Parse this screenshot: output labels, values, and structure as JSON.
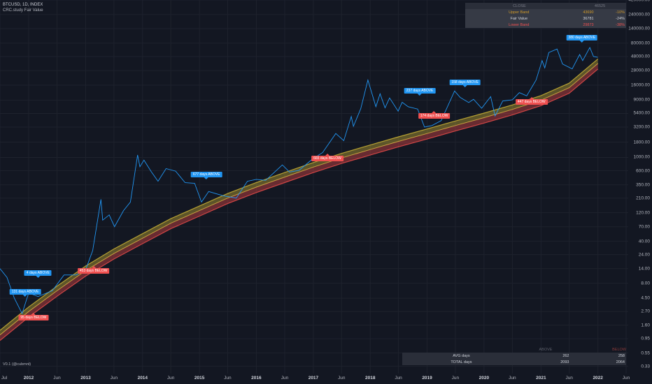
{
  "header": {
    "symbol_line": "BTCUSD, 1D, INDEX",
    "indicator_line": "CRC.study Fair Value"
  },
  "version_label": "V0.1 (@cubmnt)",
  "top_table": {
    "header": [
      "CLOSE",
      "46525"
    ],
    "rows": [
      {
        "label": "Upper Band",
        "value": "43690",
        "pct": "-10%",
        "color": "#d19a2a"
      },
      {
        "label": "Fair Value",
        "value": "36781",
        "pct": "-24%",
        "color": "#d1d4dc"
      },
      {
        "label": "Lower Band",
        "value": "29873",
        "pct": "-38%",
        "color": "#f05050"
      }
    ]
  },
  "bottom_table": {
    "header": [
      "",
      "ABOVE",
      "BELOW"
    ],
    "rows": [
      {
        "label": "AVG days",
        "above": "262",
        "below": "258"
      },
      {
        "label": "TOTAL days",
        "above": "2093",
        "below": "2064"
      }
    ]
  },
  "colors": {
    "background": "#131722",
    "price": "#2196f3",
    "band_upper": "#b5a032",
    "band_fair": "#c8a040",
    "band_lower": "#d04545",
    "above": "#2196f3",
    "below": "#f05050"
  },
  "chart_data": {
    "type": "line",
    "scale": "log",
    "ylim": [
      0.25,
      420000
    ],
    "xlim": [
      "2011-07-01",
      "2022-07-01"
    ],
    "grid": true,
    "y_ticks": [
      "420000.00",
      "240000.00",
      "140000.00",
      "80000.00",
      "48000.00",
      "28000.00",
      "16000.00",
      "9000.00",
      "5400.00",
      "3200.00",
      "1800.00",
      "1000.00",
      "600.00",
      "350.00",
      "210.00",
      "120.00",
      "70.00",
      "40.00",
      "24.00",
      "14.00",
      "8.00",
      "4.50",
      "2.70",
      "1.60",
      "0.95",
      "0.55",
      "0.33"
    ],
    "x_ticks": [
      {
        "date": "2011-07-01",
        "label": "Jul",
        "year": false
      },
      {
        "date": "2012-01-01",
        "label": "2012",
        "year": true
      },
      {
        "date": "2012-07-01",
        "label": "Jun",
        "year": false
      },
      {
        "date": "2013-01-01",
        "label": "2013",
        "year": true
      },
      {
        "date": "2013-07-01",
        "label": "Jun",
        "year": false
      },
      {
        "date": "2014-01-01",
        "label": "2014",
        "year": true
      },
      {
        "date": "2014-07-01",
        "label": "Jun",
        "year": false
      },
      {
        "date": "2015-01-01",
        "label": "2015",
        "year": true
      },
      {
        "date": "2015-07-01",
        "label": "Jun",
        "year": false
      },
      {
        "date": "2016-01-01",
        "label": "2016",
        "year": true
      },
      {
        "date": "2016-07-01",
        "label": "Jun",
        "year": false
      },
      {
        "date": "2017-01-01",
        "label": "2017",
        "year": true
      },
      {
        "date": "2017-07-01",
        "label": "Jun",
        "year": false
      },
      {
        "date": "2018-01-01",
        "label": "2018",
        "year": true
      },
      {
        "date": "2018-07-01",
        "label": "Jun",
        "year": false
      },
      {
        "date": "2019-01-01",
        "label": "2019",
        "year": true
      },
      {
        "date": "2019-07-01",
        "label": "Jun",
        "year": false
      },
      {
        "date": "2020-01-01",
        "label": "2020",
        "year": true
      },
      {
        "date": "2020-07-01",
        "label": "Jun",
        "year": false
      },
      {
        "date": "2021-01-01",
        "label": "2021",
        "year": true
      },
      {
        "date": "2021-07-01",
        "label": "Jun",
        "year": false
      },
      {
        "date": "2022-01-01",
        "label": "2022",
        "year": true
      },
      {
        "date": "2022-07-01",
        "label": "Jun",
        "year": false
      }
    ],
    "price_series": [
      [
        "2011-07-01",
        14
      ],
      [
        "2011-08-15",
        10
      ],
      [
        "2011-10-01",
        4.5
      ],
      [
        "2011-11-20",
        2.5
      ],
      [
        "2012-01-01",
        5.5
      ],
      [
        "2012-03-01",
        4.8
      ],
      [
        "2012-06-01",
        6
      ],
      [
        "2012-08-15",
        11
      ],
      [
        "2012-11-01",
        11
      ],
      [
        "2013-01-01",
        13.5
      ],
      [
        "2013-02-15",
        28
      ],
      [
        "2013-04-09",
        200
      ],
      [
        "2013-04-20",
        90
      ],
      [
        "2013-06-01",
        110
      ],
      [
        "2013-07-05",
        70
      ],
      [
        "2013-09-01",
        130
      ],
      [
        "2013-10-15",
        180
      ],
      [
        "2013-11-30",
        1100
      ],
      [
        "2013-12-15",
        700
      ],
      [
        "2014-01-10",
        900
      ],
      [
        "2014-02-25",
        580
      ],
      [
        "2014-04-10",
        400
      ],
      [
        "2014-06-01",
        650
      ],
      [
        "2014-08-01",
        590
      ],
      [
        "2014-10-01",
        380
      ],
      [
        "2014-12-01",
        370
      ],
      [
        "2015-01-14",
        180
      ],
      [
        "2015-03-01",
        270
      ],
      [
        "2015-06-01",
        230
      ],
      [
        "2015-08-25",
        210
      ],
      [
        "2015-11-05",
        400
      ],
      [
        "2016-01-01",
        430
      ],
      [
        "2016-03-01",
        415
      ],
      [
        "2016-06-16",
        750
      ],
      [
        "2016-08-01",
        570
      ],
      [
        "2016-10-01",
        610
      ],
      [
        "2016-12-31",
        960
      ],
      [
        "2017-03-01",
        1200
      ],
      [
        "2017-05-25",
        2500
      ],
      [
        "2017-07-15",
        1900
      ],
      [
        "2017-09-01",
        4800
      ],
      [
        "2017-09-15",
        3300
      ],
      [
        "2017-11-01",
        6500
      ],
      [
        "2017-12-17",
        19500
      ],
      [
        "2018-02-06",
        7000
      ],
      [
        "2018-03-05",
        11500
      ],
      [
        "2018-04-06",
        6700
      ],
      [
        "2018-05-05",
        9800
      ],
      [
        "2018-06-29",
        5900
      ],
      [
        "2018-07-25",
        8300
      ],
      [
        "2018-09-01",
        7000
      ],
      [
        "2018-11-01",
        6400
      ],
      [
        "2018-12-15",
        3200
      ],
      [
        "2019-02-01",
        3400
      ],
      [
        "2019-04-01",
        4100
      ],
      [
        "2019-06-26",
        12800
      ],
      [
        "2019-08-01",
        10000
      ],
      [
        "2019-09-25",
        8200
      ],
      [
        "2019-10-26",
        9300
      ],
      [
        "2019-12-17",
        6600
      ],
      [
        "2020-02-13",
        10300
      ],
      [
        "2020-03-12",
        4900
      ],
      [
        "2020-04-30",
        8700
      ],
      [
        "2020-07-01",
        9100
      ],
      [
        "2020-08-15",
        12000
      ],
      [
        "2020-10-01",
        10600
      ],
      [
        "2020-11-30",
        19500
      ],
      [
        "2021-01-08",
        41000
      ],
      [
        "2021-01-25",
        31000
      ],
      [
        "2021-02-20",
        56000
      ],
      [
        "2021-04-14",
        64000
      ],
      [
        "2021-05-19",
        36000
      ],
      [
        "2021-07-20",
        29800
      ],
      [
        "2021-09-06",
        52000
      ],
      [
        "2021-09-25",
        41000
      ],
      [
        "2021-11-10",
        68000
      ],
      [
        "2021-12-04",
        48000
      ],
      [
        "2021-12-31",
        46525
      ]
    ],
    "bands": {
      "note": "Fair value curve with upper and lower bands",
      "fair": [
        [
          "2011-07-01",
          1.1
        ],
        [
          "2012-01-01",
          2.7
        ],
        [
          "2012-07-01",
          6
        ],
        [
          "2013-01-01",
          13
        ],
        [
          "2013-07-01",
          25
        ],
        [
          "2014-01-01",
          45
        ],
        [
          "2014-07-01",
          80
        ],
        [
          "2015-01-01",
          130
        ],
        [
          "2015-07-01",
          210
        ],
        [
          "2016-01-01",
          320
        ],
        [
          "2016-07-01",
          470
        ],
        [
          "2017-01-01",
          690
        ],
        [
          "2017-07-01",
          980
        ],
        [
          "2018-01-01",
          1350
        ],
        [
          "2018-07-01",
          1850
        ],
        [
          "2019-01-01",
          2500
        ],
        [
          "2019-07-01",
          3400
        ],
        [
          "2020-01-01",
          4600
        ],
        [
          "2020-07-01",
          6300
        ],
        [
          "2021-01-01",
          9000
        ],
        [
          "2021-07-01",
          14500
        ],
        [
          "2022-01-01",
          36781
        ]
      ],
      "upper_factor": 1.19,
      "lower_factor": 0.81
    },
    "markers": [
      {
        "date": "2011-12-10",
        "price": 4.6,
        "type": "above",
        "label": "131 days ABOVE"
      },
      {
        "date": "2012-03-01",
        "price": 9.5,
        "type": "above",
        "label": "4 days ABOVE"
      },
      {
        "date": "2012-02-01",
        "price": 2.6,
        "type": "below",
        "label": "95 days BELOW"
      },
      {
        "date": "2013-02-20",
        "price": 15.5,
        "type": "below",
        "label": "453 days BELOW"
      },
      {
        "date": "2015-02-15",
        "price": 420,
        "type": "above",
        "label": "677 days ABOVE"
      },
      {
        "date": "2017-04-01",
        "price": 1150,
        "type": "below",
        "label": "665 days BELOW"
      },
      {
        "date": "2018-11-15",
        "price": 10500,
        "type": "above",
        "label": "237 days ABOVE"
      },
      {
        "date": "2019-02-15",
        "price": 6000,
        "type": "below",
        "label": "174 days BELOW"
      },
      {
        "date": "2019-09-01",
        "price": 14500,
        "type": "above",
        "label": "158 days ABOVE"
      },
      {
        "date": "2020-11-01",
        "price": 10200,
        "type": "below",
        "label": "447 days BELOW"
      },
      {
        "date": "2021-09-20",
        "price": 80000,
        "type": "above",
        "label": "380 days ABOVE"
      }
    ]
  }
}
